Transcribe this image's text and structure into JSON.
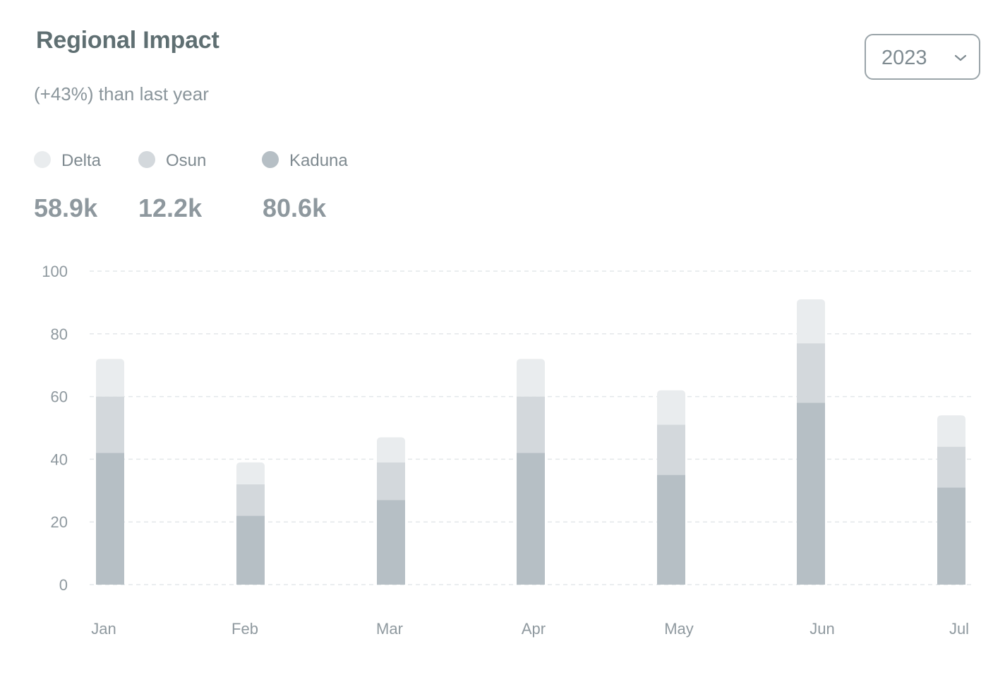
{
  "header": {
    "title": "Regional Impact",
    "subtitle": "(+43%) than last year"
  },
  "year_select": {
    "value": "2023",
    "icon": "chevron-down-icon"
  },
  "legend": [
    {
      "name": "Delta",
      "total": "58.9k",
      "color": "#e9ecee"
    },
    {
      "name": "Osun",
      "total": "12.2k",
      "color": "#d3d8dc"
    },
    {
      "name": "Kaduna",
      "total": "80.6k",
      "color": "#b6bfc5"
    }
  ],
  "chart_data": {
    "type": "bar",
    "stacked": true,
    "categories": [
      "Jan",
      "Feb",
      "Mar",
      "Apr",
      "May",
      "Jun",
      "Jul"
    ],
    "series": [
      {
        "name": "Kaduna",
        "values": [
          42,
          22,
          27,
          42,
          35,
          58,
          31
        ],
        "color": "#b6bfc5"
      },
      {
        "name": "Osun",
        "values": [
          18,
          10,
          12,
          18,
          16,
          19,
          13
        ],
        "color": "#d3d8dc"
      },
      {
        "name": "Delta",
        "values": [
          12,
          7,
          8,
          12,
          11,
          14,
          10
        ],
        "color": "#e9ecee"
      }
    ],
    "yticks": [
      "0",
      "20",
      "40",
      "60",
      "80",
      "100"
    ],
    "ylim": [
      0,
      100
    ],
    "grid": true,
    "legend_position": "top-left"
  }
}
